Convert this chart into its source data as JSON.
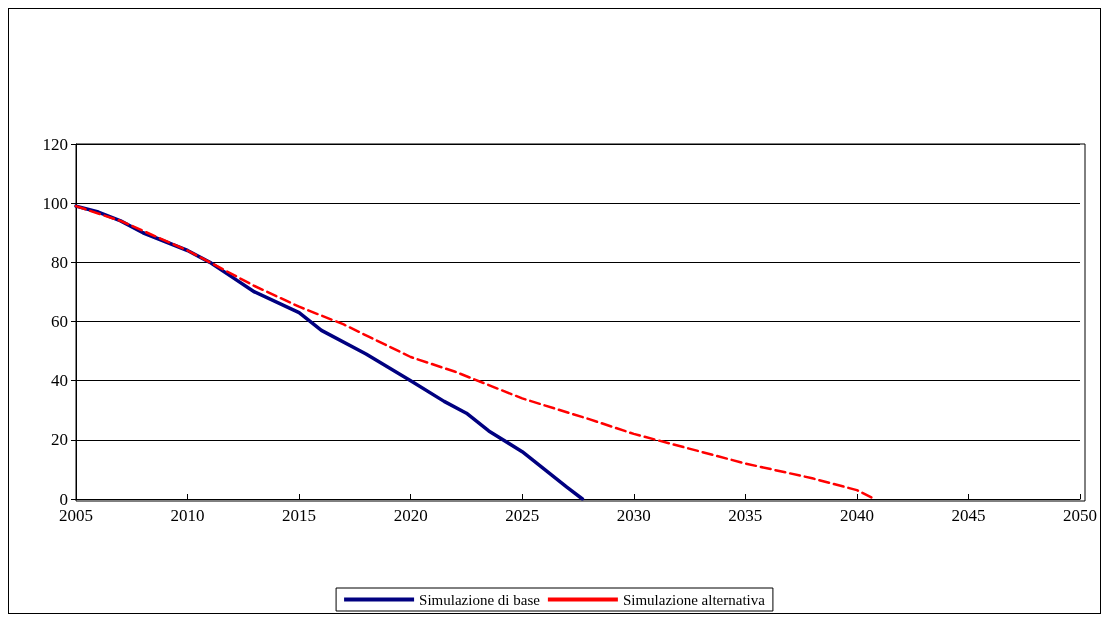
{
  "chart_data": {
    "type": "line",
    "xlim": [
      2005,
      2050
    ],
    "xticks": [
      2005,
      2010,
      2015,
      2020,
      2025,
      2030,
      2035,
      2040,
      2045,
      2050
    ],
    "ylim": [
      0,
      120
    ],
    "yticks": [
      0,
      20,
      40,
      60,
      80,
      100,
      120
    ],
    "grid": "y",
    "legend": "bottom",
    "marker": "none",
    "series": [
      {
        "name": "Simulazione di base",
        "color": "#000080",
        "line_style": "solid",
        "x": [
          2005,
          2006,
          2007,
          2008,
          2010,
          2011,
          2012,
          2013,
          2015,
          2016,
          2018,
          2020,
          2021.5,
          2022.5,
          2023.5,
          2025,
          2026,
          2027,
          2027.7
        ],
        "values": [
          99,
          97,
          94,
          90,
          84,
          80,
          75,
          70,
          63,
          57,
          49,
          40,
          33,
          29,
          23,
          16,
          10,
          4,
          0
        ]
      },
      {
        "name": "Simulazione alternativa",
        "color": "#ff0000",
        "line_style": "dashed",
        "x": [
          2005,
          2007,
          2010,
          2013,
          2015,
          2017,
          2020,
          2022,
          2025,
          2028,
          2030,
          2033,
          2035,
          2038,
          2040,
          2040.8
        ],
        "values": [
          99,
          94,
          84,
          72,
          65,
          59,
          48,
          43,
          34,
          27,
          22,
          16,
          12,
          7,
          3,
          0
        ]
      }
    ]
  }
}
